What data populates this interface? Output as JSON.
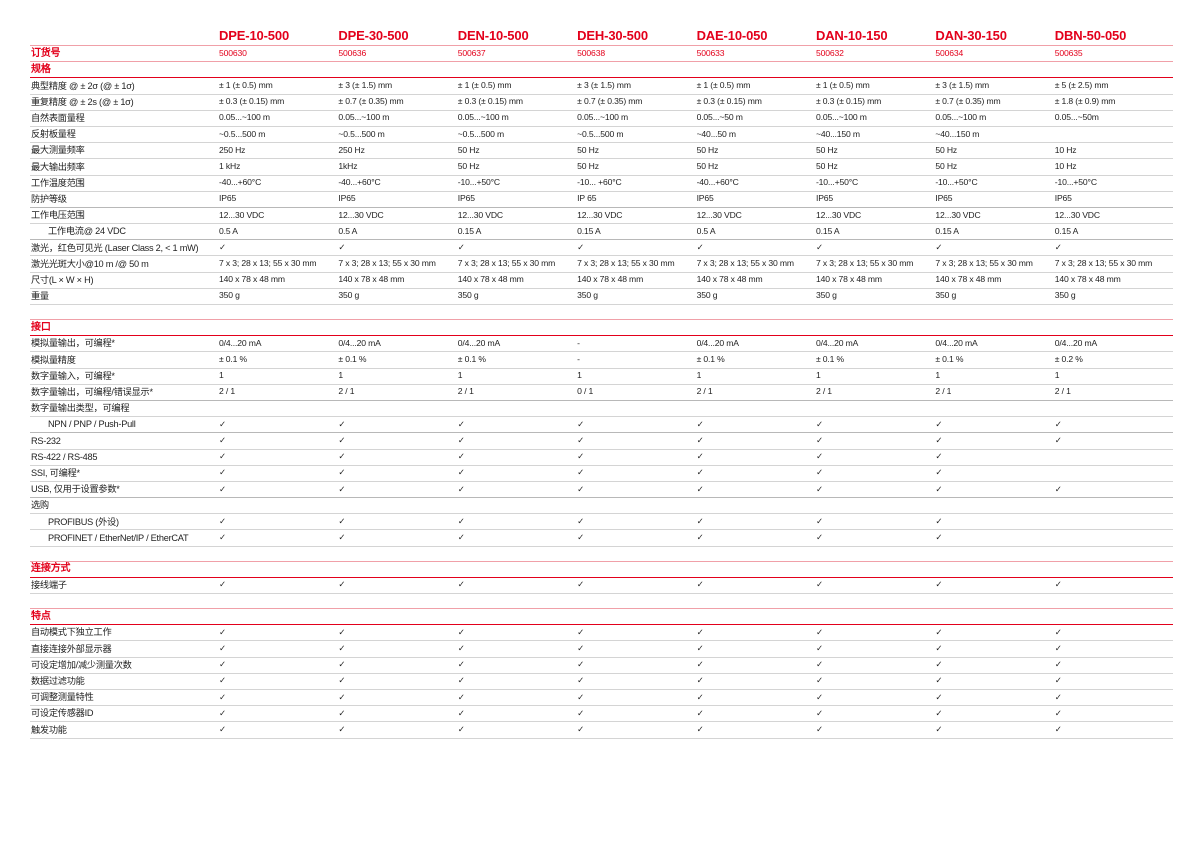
{
  "header": {
    "models": [
      "DPE-10-500",
      "DPE-30-500",
      "DEN-10-500",
      "DEH-30-500",
      "DAE-10-050",
      "DAN-10-150",
      "DAN-30-150",
      "DBN-50-050"
    ]
  },
  "order": {
    "label": "订货号",
    "values": [
      "500630",
      "500636",
      "500637",
      "500638",
      "500633",
      "500632",
      "500634",
      "500635"
    ]
  },
  "colors": {
    "accent": "#e3001b"
  },
  "sections": [
    {
      "title": "规格",
      "rows": [
        {
          "label": "典型精度 @ ± 2σ (@ ± 1σ)",
          "values": [
            "± 1 (± 0.5) mm",
            "± 3 (± 1.5) mm",
            "± 1 (± 0.5) mm",
            "± 3 (± 1.5) mm",
            "± 1 (± 0.5) mm",
            "± 1 (± 0.5) mm",
            "± 3 (± 1.5) mm",
            "± 5 (± 2.5) mm"
          ]
        },
        {
          "label": "重复精度 @ ± 2s (@ ± 1σ)",
          "values": [
            "± 0.3 (± 0.15) mm",
            "± 0.7 (± 0.35) mm",
            "± 0.3 (± 0.15) mm",
            "± 0.7 (± 0.35) mm",
            "± 0.3 (± 0.15) mm",
            "± 0.3 (± 0.15) mm",
            "± 0.7 (± 0.35) mm",
            "± 1.8 (± 0.9) mm"
          ]
        },
        {
          "label": "自然表面量程",
          "values": [
            "0.05...~100 m",
            "0.05...~100 m",
            "0.05...~100 m",
            "0.05...~100 m",
            "0.05...~50 m",
            "0.05...~100 m",
            "0.05...~100 m",
            "0.05...~50m"
          ]
        },
        {
          "label": "反射板量程",
          "values": [
            " ~0.5...500 m",
            " ~0.5...500 m",
            " ~0.5...500 m",
            " ~0.5...500 m",
            "~40...50 m",
            "~40...150 m",
            "~40...150 m",
            ""
          ]
        },
        {
          "label": "最大测量频率",
          "values": [
            "250 Hz",
            "250 Hz",
            "50 Hz",
            "50 Hz",
            "50 Hz",
            "50 Hz",
            "50 Hz",
            "10 Hz"
          ]
        },
        {
          "label": "最大输出频率",
          "values": [
            "1 kHz",
            "1kHz",
            "50 Hz",
            "50 Hz",
            "50 Hz",
            "50 Hz",
            "50 Hz",
            "10 Hz"
          ]
        },
        {
          "label": "工作温度范围",
          "values": [
            "-40...+60°C",
            "-40...+60°C",
            "-10...+50°C",
            "-10... +60°C",
            "-40...+60°C",
            "-10...+50°C",
            "-10...+50°C",
            "-10...+50°C"
          ]
        },
        {
          "label": "防护等级",
          "thick": true,
          "values": [
            "IP65",
            "IP65",
            "IP65",
            "IP 65",
            "IP65",
            "IP65",
            "IP65",
            "IP65"
          ]
        },
        {
          "label": "工作电压范围",
          "values": [
            "12...30 VDC",
            "12...30 VDC",
            "12...30 VDC",
            "12...30 VDC",
            "12...30 VDC",
            "12...30 VDC",
            "12...30 VDC",
            "12...30 VDC"
          ]
        },
        {
          "label": "工作电流@ 24 VDC",
          "indent": true,
          "thick": true,
          "values": [
            "0.5 A",
            "0.5 A",
            "0.15 A",
            "0.15 A",
            "0.5 A",
            "0.15 A",
            "0.15 A",
            "0.15 A"
          ]
        },
        {
          "label": "激光，红色可见光 (Laser Class 2, < 1 mW)",
          "values": [
            "✓",
            "✓",
            "✓",
            "✓",
            "✓",
            "✓",
            "✓",
            "✓"
          ]
        },
        {
          "label": "激光光斑大小@10 m /@ 50 m",
          "values": [
            "7 x 3; 28 x 13; 55 x 30 mm",
            "7 x 3; 28 x 13; 55 x 30 mm",
            "7 x 3; 28 x 13; 55 x 30 mm",
            "7 x 3; 28 x 13; 55 x 30 mm",
            "7 x 3; 28 x 13; 55 x 30 mm",
            "7 x 3; 28 x 13; 55 x 30 mm",
            "7 x 3; 28 x 13; 55 x 30 mm",
            "7 x 3; 28 x 13; 55 x 30 mm"
          ]
        },
        {
          "label": "尺寸(L × W × H)",
          "values": [
            "140 x 78 x 48 mm",
            "140 x 78 x 48 mm",
            "140 x 78 x 48 mm",
            "140 x 78 x 48 mm",
            "140 x 78 x 48 mm",
            "140 x 78 x 48 mm",
            "140 x 78 x 48 mm",
            "140 x 78 x 48 mm"
          ]
        },
        {
          "label": "重量",
          "values": [
            "350 g",
            "350 g",
            "350 g",
            "350 g",
            "350 g",
            "350 g",
            "350 g",
            "350 g"
          ]
        }
      ]
    },
    {
      "title": "接口",
      "rows": [
        {
          "label": "模拟量输出，可编程*",
          "values": [
            "0/4...20 mA",
            "0/4...20 mA",
            "0/4...20 mA",
            "-",
            "0/4...20 mA",
            "0/4...20 mA",
            "0/4...20 mA",
            "0/4...20 mA"
          ]
        },
        {
          "label": "模拟量精度",
          "values": [
            "± 0.1 %",
            "± 0.1 %",
            "± 0.1 %",
            "-",
            "± 0.1 %",
            "± 0.1 %",
            "± 0.1 %",
            "± 0.2 %"
          ]
        },
        {
          "label": "数字量输入，可编程*",
          "values": [
            "1",
            "1",
            "1",
            "1",
            "1",
            "1",
            "1",
            "1"
          ]
        },
        {
          "label": "数字量输出，可编程/错误显示*",
          "thick": true,
          "values": [
            "2 / 1",
            "2 / 1",
            "2 / 1",
            "0 / 1",
            "2 / 1",
            "2 / 1",
            "2 / 1",
            "2 / 1"
          ]
        },
        {
          "label": "数字量输出类型，可编程",
          "values": [
            "",
            "",
            "",
            "",
            "",
            "",
            "",
            ""
          ]
        },
        {
          "label": "NPN / PNP / Push-Pull",
          "indent": true,
          "thick": true,
          "values": [
            "✓",
            "✓",
            "✓",
            "✓",
            "✓",
            "✓",
            "✓",
            "✓"
          ]
        },
        {
          "label": "RS-232",
          "values": [
            "✓",
            "✓",
            "✓",
            "✓",
            "✓",
            "✓",
            "✓",
            "✓"
          ]
        },
        {
          "label": "RS-422 / RS-485",
          "values": [
            "✓",
            "✓",
            "✓",
            "✓",
            "✓",
            "✓",
            "✓",
            ""
          ]
        },
        {
          "label": "SSI, 可编程*",
          "values": [
            "✓",
            "✓",
            "✓",
            "✓",
            "✓",
            "✓",
            "✓",
            ""
          ]
        },
        {
          "label": "USB, 仅用于设置参数*",
          "thick": true,
          "values": [
            "✓",
            "✓",
            "✓",
            "✓",
            "✓",
            "✓",
            "✓",
            "✓"
          ]
        },
        {
          "label": "选购",
          "values": [
            "",
            "",
            "",
            "",
            "",
            "",
            "",
            ""
          ]
        },
        {
          "label": "PROFIBUS (外设)",
          "indent": true,
          "values": [
            "✓",
            "✓",
            "✓",
            "✓",
            "✓",
            "✓",
            "✓",
            ""
          ]
        },
        {
          "label": "PROFINET / EtherNet/IP / EtherCAT",
          "indent": true,
          "values": [
            "✓",
            "✓",
            "✓",
            "✓",
            "✓",
            "✓",
            "✓",
            ""
          ]
        }
      ]
    },
    {
      "title": "连接方式",
      "rows": [
        {
          "label": "接线端子",
          "values": [
            "✓",
            "✓",
            "✓",
            "✓",
            "✓",
            "✓",
            "✓",
            "✓"
          ]
        }
      ]
    },
    {
      "title": "特点",
      "rows": [
        {
          "label": "自动模式下独立工作",
          "values": [
            "✓",
            "✓",
            "✓",
            "✓",
            "✓",
            "✓",
            "✓",
            "✓"
          ]
        },
        {
          "label": "直接连接外部显示器",
          "values": [
            "✓",
            "✓",
            "✓",
            "✓",
            "✓",
            "✓",
            "✓",
            "✓"
          ]
        },
        {
          "label": "可设定增加/减少测量次数",
          "values": [
            "✓",
            "✓",
            "✓",
            "✓",
            "✓",
            "✓",
            "✓",
            "✓"
          ]
        },
        {
          "label": "数据过滤功能",
          "values": [
            "✓",
            "✓",
            "✓",
            "✓",
            "✓",
            "✓",
            "✓",
            "✓"
          ]
        },
        {
          "label": "可调整测量特性",
          "values": [
            "✓",
            "✓",
            "✓",
            "✓",
            "✓",
            "✓",
            "✓",
            "✓"
          ]
        },
        {
          "label": "可设定传感器ID",
          "values": [
            "✓",
            "✓",
            "✓",
            "✓",
            "✓",
            "✓",
            "✓",
            "✓"
          ]
        },
        {
          "label": "触发功能",
          "values": [
            "✓",
            "✓",
            "✓",
            "✓",
            "✓",
            "✓",
            "✓",
            "✓"
          ]
        }
      ]
    }
  ]
}
